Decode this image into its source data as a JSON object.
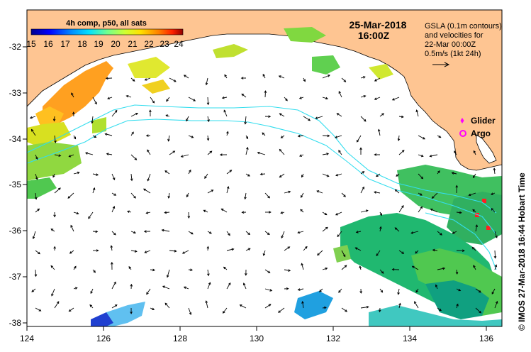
{
  "map": {
    "datetime_line1": "25-Mar-2018",
    "datetime_line2": "16:00Z",
    "colorbar": {
      "title": "4h comp, p50, all sats",
      "labels": [
        "15",
        "16",
        "17",
        "18",
        "19",
        "20",
        "21",
        "22",
        "23",
        "24"
      ],
      "min": 15,
      "max": 24,
      "colors": [
        "#00007f",
        "#0000ff",
        "#0080ff",
        "#00ffff",
        "#80ff80",
        "#ffff00",
        "#ff8000",
        "#ff0000",
        "#800000"
      ]
    },
    "note": {
      "line1": "GSLA (0.1m contours)",
      "line2": "and velocities for",
      "line3": "22-Mar 00:00Z",
      "line4": "0.5m/s (1kt 24h)"
    },
    "legend": {
      "glider": "Glider",
      "argo": "Argo",
      "glider_color": "#ff00ff",
      "argo_color": "#ff00ff"
    },
    "credit": "©  IMOS 27-Mar-2018 16:44 Hobart Time",
    "x_ticks": [
      "124",
      "126",
      "128",
      "130",
      "132",
      "134",
      "136"
    ],
    "y_ticks": [
      "-32",
      "-33",
      "-34",
      "-35",
      "-36",
      "-37",
      "-38"
    ],
    "lon_range": [
      124,
      136.5
    ],
    "lat_range": [
      -38.2,
      -31.3
    ],
    "colors": {
      "land": "#fec592",
      "contour": "#33ddee",
      "ocean": "#ffffff",
      "arrow": "#000000"
    }
  }
}
